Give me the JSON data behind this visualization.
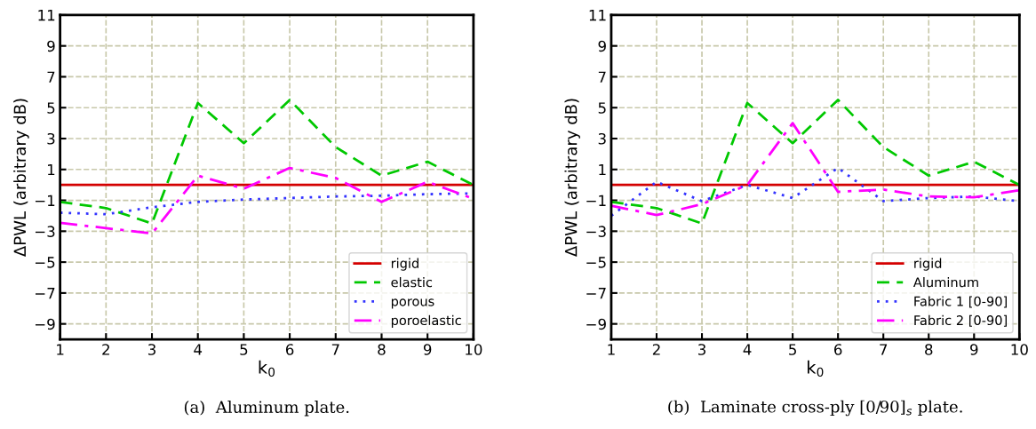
{
  "chart_data": [
    {
      "type": "line",
      "x": [
        1,
        2,
        3,
        4,
        5,
        6,
        7,
        8,
        9,
        10
      ],
      "xlabel": "k$_{0}$",
      "ylabel": "ΔPWL (arbitrary dB)",
      "xlim": [
        1,
        10
      ],
      "xticks": [
        1,
        2,
        3,
        4,
        5,
        6,
        7,
        8,
        9,
        10
      ],
      "ylim": [
        -10,
        11
      ],
      "yticks": [
        -9,
        -7,
        -5,
        -3,
        -1,
        1,
        3,
        5,
        7,
        9,
        11
      ],
      "grid": true,
      "legend": "bottom right",
      "marker": "none",
      "annotations": [
        "(a)  Aluminum plate."
      ],
      "series": [
        {
          "name": "rigid",
          "color": "#d40000",
          "line_style": "solid",
          "values": [
            0,
            0,
            0,
            0,
            0,
            0,
            0,
            0,
            0,
            0
          ]
        },
        {
          "name": "elastic",
          "color": "#00c800",
          "line_style": "dashed",
          "values": [
            -1.1,
            -1.5,
            -2.5,
            5.3,
            2.7,
            5.5,
            2.45,
            0.6,
            1.5,
            0
          ]
        },
        {
          "name": "porous",
          "color": "#3333ff",
          "line_style": "dotted",
          "values": [
            -1.8,
            -1.9,
            -1.45,
            -1.1,
            -0.95,
            -0.85,
            -0.75,
            -0.7,
            -0.6,
            -0.55
          ]
        },
        {
          "name": "poroelastic",
          "color": "#ff00ff",
          "line_style": "dashdot",
          "values": [
            -2.45,
            -2.8,
            -3.15,
            0.6,
            -0.25,
            1.1,
            0.45,
            -1.1,
            0.2,
            -0.9
          ]
        }
      ]
    },
    {
      "type": "line",
      "x": [
        1,
        2,
        3,
        4,
        5,
        6,
        7,
        8,
        9,
        10
      ],
      "xlabel": "k$_{0}$",
      "ylabel": "ΔPWL (arbitrary dB)",
      "xlim": [
        1,
        10
      ],
      "xticks": [
        1,
        2,
        3,
        4,
        5,
        6,
        7,
        8,
        9,
        10
      ],
      "ylim": [
        -10,
        11
      ],
      "yticks": [
        -9,
        -7,
        -5,
        -3,
        -1,
        1,
        3,
        5,
        7,
        9,
        11
      ],
      "grid": true,
      "legend": "bottom right",
      "marker": "none",
      "annotations": [
        "(b)  Laminate cross-ply [0/90]$_{s}$ plate."
      ],
      "series": [
        {
          "name": "rigid",
          "color": "#d40000",
          "line_style": "solid",
          "values": [
            0,
            0,
            0,
            0,
            0,
            0,
            0,
            0,
            0,
            0
          ]
        },
        {
          "name": "Aluminum",
          "color": "#00c800",
          "line_style": "dashed",
          "values": [
            -1.1,
            -1.5,
            -2.5,
            5.3,
            2.7,
            5.5,
            2.45,
            0.6,
            1.5,
            0
          ]
        },
        {
          "name": "Fabric 1 [0-90]",
          "color": "#3333ff",
          "line_style": "dotted",
          "values": [
            -2.0,
            0.2,
            -1.05,
            0,
            -0.85,
            1.1,
            -1.05,
            -0.85,
            -0.75,
            -1.05
          ]
        },
        {
          "name": "Fabric 2 [0-90]",
          "color": "#ff00ff",
          "line_style": "dashdot",
          "values": [
            -1.35,
            -1.95,
            -1.25,
            0,
            4.0,
            -0.45,
            -0.3,
            -0.75,
            -0.8,
            -0.35
          ]
        }
      ]
    }
  ]
}
